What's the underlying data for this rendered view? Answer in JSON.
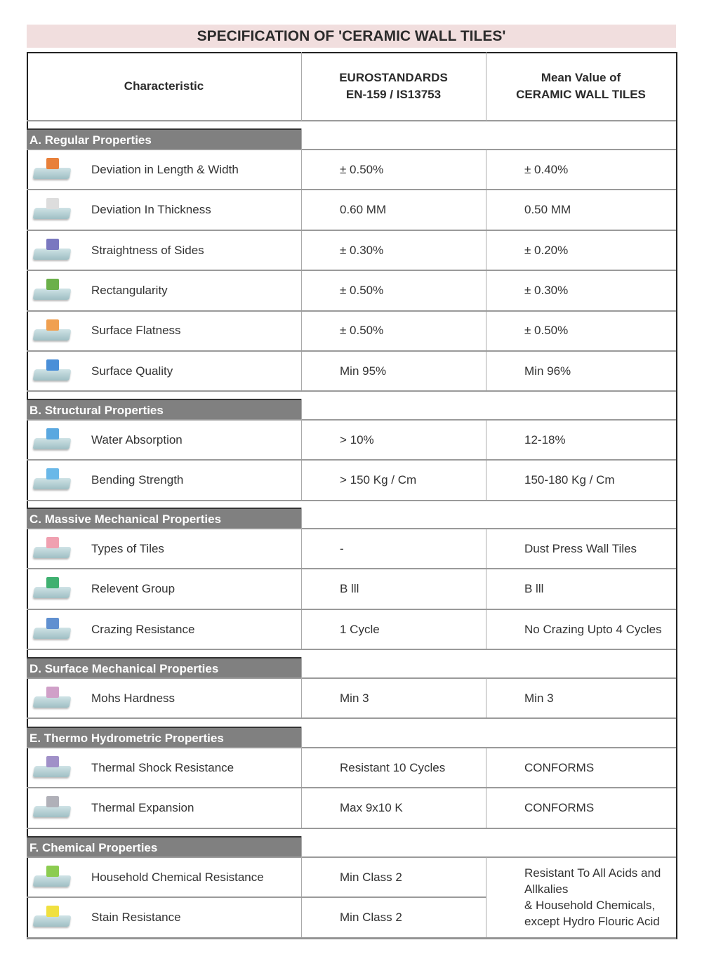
{
  "title": "SPECIFICATION OF 'CERAMIC WALL TILES'",
  "headers": {
    "characteristic": "Characteristic",
    "standard_line1": "EUROSTANDARDS",
    "standard_line2": "EN-159 / IS13753",
    "mean_line1": "Mean Value of",
    "mean_line2": "CERAMIC WALL TILES"
  },
  "sections": [
    {
      "label": "A. Regular Properties",
      "rows": [
        {
          "name": "Deviation in Length & Width",
          "standard": "± 0.50%",
          "mean": "± 0.40%",
          "icon": "tile-dimension-icon",
          "color": "#e8803a"
        },
        {
          "name": "Deviation In Thickness",
          "standard": "0.60 MM",
          "mean": "0.50 MM",
          "icon": "tile-thickness-icon",
          "color": "#dddddd"
        },
        {
          "name": "Straightness of Sides",
          "standard": "± 0.30%",
          "mean": "± 0.20%",
          "icon": "tile-straightness-icon",
          "color": "#7a78c0"
        },
        {
          "name": "Rectangularity",
          "standard": "± 0.50%",
          "mean": "± 0.30%",
          "icon": "tile-rectangularity-icon",
          "color": "#6bb04a"
        },
        {
          "name": "Surface Flatness",
          "standard": "± 0.50%",
          "mean": "± 0.50%",
          "icon": "tile-flatness-icon",
          "color": "#f0a050"
        },
        {
          "name": "Surface Quality",
          "standard": "Min 95%",
          "mean": "Min 96%",
          "icon": "tile-quality-star-icon",
          "color": "#4a8fd8"
        }
      ]
    },
    {
      "label": "B. Structural Properties",
      "rows": [
        {
          "name": "Water Absorption",
          "standard": "> 10%",
          "mean": "12-18%",
          "icon": "water-drop-icon",
          "color": "#5aa8e0"
        },
        {
          "name": "Bending Strength",
          "standard": "> 150 Kg / Cm",
          "mean": "150-180 Kg / Cm",
          "icon": "bending-weight-icon",
          "color": "#6ab8e8"
        }
      ]
    },
    {
      "label": "C. Massive Mechanical Properties",
      "rows": [
        {
          "name": "Types of Tiles",
          "standard": "-",
          "mean": "Dust Press Wall Tiles",
          "icon": "tile-type-icon",
          "color": "#f0a0b0"
        },
        {
          "name": "Relevent Group",
          "standard": "B lll",
          "mean": "B lll",
          "icon": "tile-group-icon",
          "color": "#3fb070"
        },
        {
          "name": "Crazing Resistance",
          "standard": "1 Cycle",
          "mean": "No Crazing Upto 4 Cycles",
          "icon": "crazing-burst-icon",
          "color": "#6090d0"
        }
      ]
    },
    {
      "label": "D. Surface Mechanical Properties",
      "rows": [
        {
          "name": "Mohs Hardness",
          "standard": "Min 3",
          "mean": "Min 3",
          "icon": "hardness-crystal-icon",
          "color": "#d0a0c8"
        }
      ]
    },
    {
      "label": "E. Thermo Hydrometric Properties",
      "rows": [
        {
          "name": "Thermal Shock Resistance",
          "standard": "Resistant 10 Cycles",
          "mean": "CONFORMS",
          "icon": "thermal-shock-icon",
          "color": "#a090c8"
        },
        {
          "name": "Thermal Expansion",
          "standard": "Max 9x10 K",
          "mean": "CONFORMS",
          "icon": "thermal-expansion-icon",
          "color": "#b0b0b8"
        }
      ]
    },
    {
      "label": "F. Chemical Properties",
      "rows": [
        {
          "name": "Household Chemical Resistance",
          "standard": "Min Class 2",
          "icon": "chemical-flask-icon",
          "color": "#8ccc50"
        },
        {
          "name": "Stain Resistance",
          "standard": "Min Class 2",
          "icon": "stain-icon",
          "color": "#f0e040"
        }
      ],
      "merged_mean": [
        "Resistant To All Acids and",
        "Allkalies",
        "& Household Chemicals,",
        "except Hydro Flouric Acid"
      ]
    }
  ]
}
